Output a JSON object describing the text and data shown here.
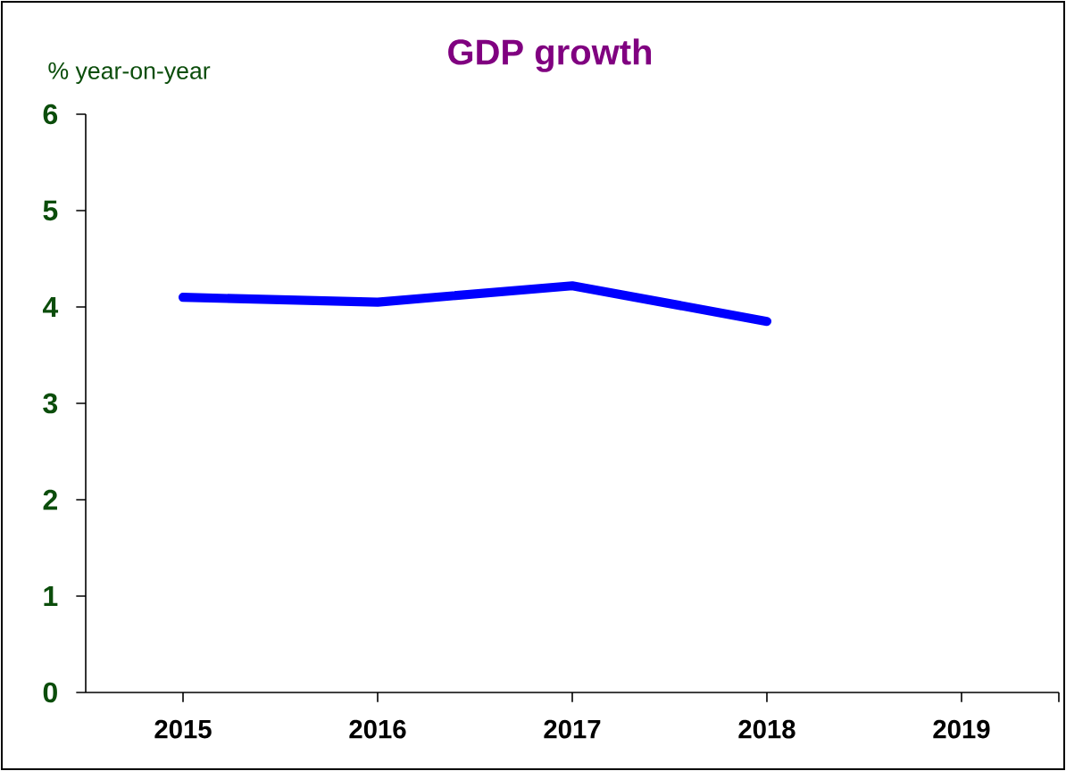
{
  "chart_data": {
    "type": "line",
    "title": "GDP growth",
    "ylabel": "% year-on-year",
    "categories": [
      "2015",
      "2016",
      "2017",
      "2018",
      "2019"
    ],
    "series": [
      {
        "color": "#0000ff",
        "values": [
          4.1,
          4.05,
          4.22,
          3.85,
          null
        ]
      }
    ],
    "ylim": [
      0,
      6
    ],
    "yticks": [
      0,
      1,
      2,
      3,
      4,
      5,
      6
    ],
    "grid": false,
    "marker": "none",
    "line_style": "solid"
  }
}
